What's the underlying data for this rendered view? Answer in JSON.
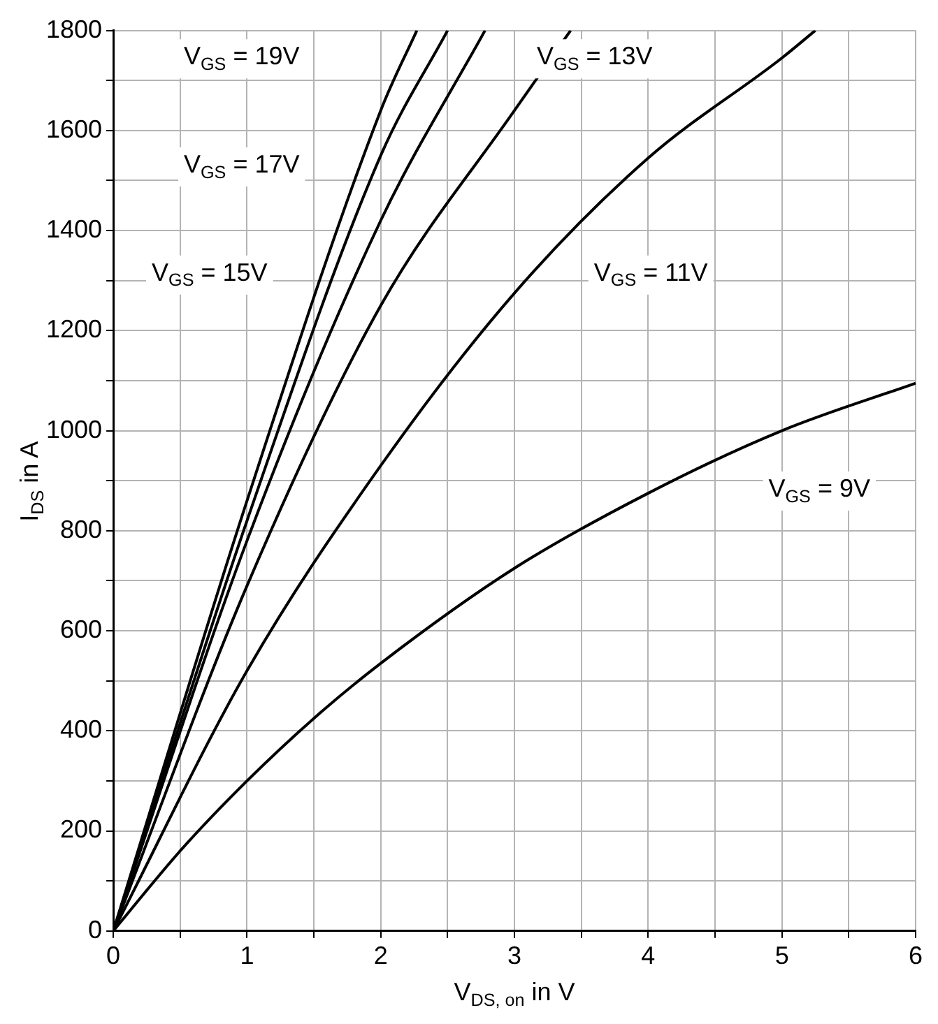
{
  "chart_data": {
    "type": "line",
    "xlabel": "V$_{DS, on}$ in V",
    "ylabel": "I$_{DS}$ in A",
    "xlim": [
      0,
      6
    ],
    "ylim": [
      0,
      1800
    ],
    "xticks": [
      0,
      {
        "value": 0.5,
        "label": null
      },
      1,
      {
        "value": 1.5,
        "label": null
      },
      2,
      {
        "value": 2.5,
        "label": null
      },
      3,
      {
        "value": 3.5,
        "label": null
      },
      4,
      {
        "value": 4.5,
        "label": null
      },
      5,
      {
        "value": 5.5,
        "label": null
      },
      6
    ],
    "yticks": [
      0,
      {
        "value": 100,
        "label": null
      },
      200,
      {
        "value": 300,
        "label": null
      },
      400,
      {
        "value": 500,
        "label": null
      },
      600,
      {
        "value": 700,
        "label": null
      },
      800,
      {
        "value": 900,
        "label": null
      },
      1000,
      {
        "value": 1100,
        "label": null
      },
      1200,
      {
        "value": 1300,
        "label": null
      },
      1400,
      {
        "value": 1500,
        "label": null
      },
      1600,
      {
        "value": 1700,
        "label": null
      },
      1800
    ],
    "grid": true,
    "legend": false,
    "marker": "none",
    "line_style": "solid",
    "series": [
      {
        "color": "#000000",
        "x": [
          0,
          1,
          2,
          2.27
        ],
        "values": [
          0,
          860,
          1640,
          1800
        ]
      },
      {
        "color": "#000000",
        "x": [
          0,
          1,
          2,
          2.5
        ],
        "values": [
          0,
          820,
          1550,
          1800
        ]
      },
      {
        "color": "#000000",
        "x": [
          0,
          1,
          2,
          2.78
        ],
        "values": [
          0,
          780,
          1420,
          1800
        ]
      },
      {
        "color": "#000000",
        "x": [
          0,
          1,
          2,
          3,
          3.42
        ],
        "values": [
          0,
          690,
          1250,
          1640,
          1800
        ]
      },
      {
        "color": "#000000",
        "x": [
          0,
          1,
          2,
          3,
          4,
          5,
          5.25
        ],
        "values": [
          0,
          520,
          930,
          1275,
          1545,
          1745,
          1800
        ]
      },
      {
        "color": "#000000",
        "x": [
          0,
          0.5,
          1,
          1.5,
          2,
          3,
          4,
          5,
          6
        ],
        "values": [
          0,
          160,
          300,
          425,
          535,
          725,
          875,
          1000,
          1095
        ]
      }
    ],
    "annotations": [
      "V$_{GS}$ = 19V",
      "V$_{GS}$ = 17V",
      "V$_{GS}$ = 15V",
      "V$_{GS}$ = 13V",
      "V$_{GS}$ = 11V",
      "V$_{GS}$ = 9V"
    ]
  }
}
